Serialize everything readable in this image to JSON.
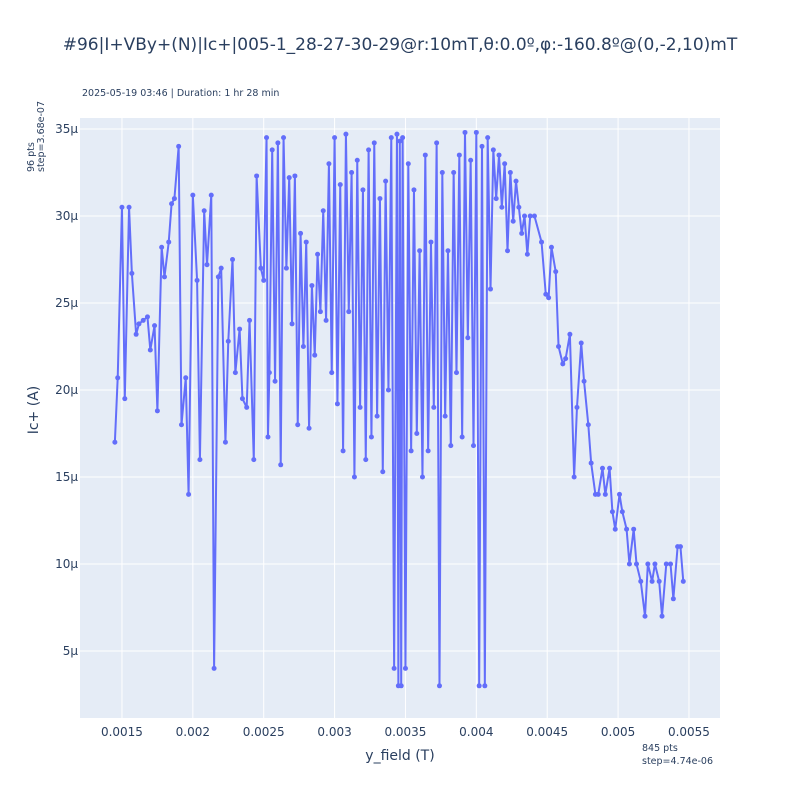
{
  "chart_data": {
    "type": "line",
    "title": "#96|I+VBy+(N)|Ic+|005-1_28-27-30-29@r:10mT,θ:0.0º,φ:-160.8º@(0,-2,10)mT",
    "annotation_top": "2025-05-19 03:46 | Duration: 1 hr 28 min",
    "annotation_left": [
      "96 pts",
      "step=3.68e-07"
    ],
    "annotation_bottom": [
      "845 pts",
      "step=4.74e-06"
    ],
    "x_label": "y_field (T)",
    "y_label": "Ic+ (A)",
    "color": "#636efa",
    "grid": true,
    "xlim": [
      0.001204,
      0.005719
    ],
    "xticks": [
      0.0015,
      0.002,
      0.0025,
      0.003,
      0.0035,
      0.004,
      0.0045,
      0.005,
      0.0055
    ],
    "ylim": [
      1.15e-06,
      3.563e-05
    ],
    "yticks": [
      {
        "value": 5e-06,
        "label": "5μ"
      },
      {
        "value": 1e-05,
        "label": "10μ"
      },
      {
        "value": 1.5e-05,
        "label": "15μ"
      },
      {
        "value": 2e-05,
        "label": "20μ"
      },
      {
        "value": 2.5e-05,
        "label": "25μ"
      },
      {
        "value": 3e-05,
        "label": "30μ"
      },
      {
        "value": 3.5e-05,
        "label": "35μ"
      }
    ],
    "x": [
      0.00145,
      0.00147,
      0.0015,
      0.00152,
      0.00155,
      0.00157,
      0.0016,
      0.00162,
      0.00165,
      0.00168,
      0.0017,
      0.00173,
      0.00175,
      0.00178,
      0.0018,
      0.00183,
      0.00185,
      0.00187,
      0.0019,
      0.00192,
      0.00195,
      0.00197,
      0.002,
      0.00203,
      0.00205,
      0.00208,
      0.0021,
      0.00213,
      0.00215,
      0.00218,
      0.0022,
      0.00223,
      0.00225,
      0.00228,
      0.0023,
      0.00233,
      0.00235,
      0.00238,
      0.0024,
      0.00243,
      0.00245,
      0.00248,
      0.0025,
      0.00252,
      0.00253,
      0.00254,
      0.00256,
      0.00258,
      0.0026,
      0.00262,
      0.00264,
      0.00266,
      0.00268,
      0.0027,
      0.00272,
      0.00274,
      0.00276,
      0.00278,
      0.0028,
      0.00282,
      0.00284,
      0.00286,
      0.00288,
      0.0029,
      0.00292,
      0.00294,
      0.00296,
      0.00298,
      0.003,
      0.00302,
      0.00304,
      0.00306,
      0.00308,
      0.0031,
      0.00312,
      0.00314,
      0.00316,
      0.00318,
      0.0032,
      0.00322,
      0.00324,
      0.00326,
      0.00328,
      0.0033,
      0.00332,
      0.00334,
      0.00336,
      0.00338,
      0.0034,
      0.00342,
      0.00344,
      0.00345,
      0.00346,
      0.00347,
      0.00348,
      0.0035,
      0.00352,
      0.00354,
      0.00356,
      0.00358,
      0.0036,
      0.00362,
      0.00364,
      0.00366,
      0.00368,
      0.0037,
      0.00372,
      0.00374,
      0.00376,
      0.00378,
      0.0038,
      0.00382,
      0.00384,
      0.00386,
      0.00388,
      0.0039,
      0.00392,
      0.00394,
      0.00396,
      0.00398,
      0.004,
      0.00402,
      0.00404,
      0.00406,
      0.00408,
      0.0041,
      0.00412,
      0.00414,
      0.00416,
      0.00418,
      0.0042,
      0.00422,
      0.00424,
      0.00426,
      0.00428,
      0.0043,
      0.00432,
      0.00434,
      0.00436,
      0.00438,
      0.00441,
      0.00446,
      0.00449,
      0.00451,
      0.00453,
      0.00456,
      0.00458,
      0.00461,
      0.00463,
      0.00466,
      0.00469,
      0.00471,
      0.00474,
      0.00476,
      0.00479,
      0.00481,
      0.00484,
      0.00486,
      0.00489,
      0.00491,
      0.00494,
      0.00496,
      0.00498,
      0.00501,
      0.00503,
      0.00506,
      0.00508,
      0.00511,
      0.00513,
      0.00516,
      0.00519,
      0.00521,
      0.00524,
      0.00526,
      0.00529,
      0.00531,
      0.00534,
      0.00537,
      0.00539,
      0.00542,
      0.00544,
      0.00546
    ],
    "values": [
      1.7e-05,
      2.07e-05,
      3.05e-05,
      1.95e-05,
      3.05e-05,
      2.67e-05,
      2.32e-05,
      2.38e-05,
      2.4e-05,
      2.42e-05,
      2.23e-05,
      2.37e-05,
      1.88e-05,
      2.82e-05,
      2.65e-05,
      2.85e-05,
      3.07e-05,
      3.1e-05,
      3.4e-05,
      1.8e-05,
      2.07e-05,
      1.4e-05,
      3.12e-05,
      2.63e-05,
      1.6e-05,
      3.03e-05,
      2.72e-05,
      3.12e-05,
      4e-06,
      2.65e-05,
      2.7e-05,
      1.7e-05,
      2.28e-05,
      2.75e-05,
      2.1e-05,
      2.35e-05,
      1.95e-05,
      1.9e-05,
      2.4e-05,
      1.6e-05,
      3.23e-05,
      2.7e-05,
      2.63e-05,
      3.45e-05,
      1.73e-05,
      2.1e-05,
      3.38e-05,
      2.05e-05,
      3.42e-05,
      1.57e-05,
      3.45e-05,
      2.7e-05,
      3.22e-05,
      2.38e-05,
      3.23e-05,
      1.8e-05,
      2.9e-05,
      2.25e-05,
      2.85e-05,
      1.78e-05,
      2.6e-05,
      2.2e-05,
      2.78e-05,
      2.45e-05,
      3.03e-05,
      2.4e-05,
      3.3e-05,
      2.1e-05,
      3.45e-05,
      1.92e-05,
      3.18e-05,
      1.65e-05,
      3.47e-05,
      2.45e-05,
      3.25e-05,
      1.5e-05,
      3.32e-05,
      1.9e-05,
      3.15e-05,
      1.6e-05,
      3.38e-05,
      1.73e-05,
      3.42e-05,
      1.85e-05,
      3.1e-05,
      1.53e-05,
      3.2e-05,
      2e-05,
      3.45e-05,
      4e-06,
      3.47e-05,
      3e-06,
      3.43e-05,
      3e-06,
      3.45e-05,
      4e-06,
      3.3e-05,
      1.65e-05,
      3.15e-05,
      1.75e-05,
      2.8e-05,
      1.5e-05,
      3.35e-05,
      1.65e-05,
      2.85e-05,
      1.9e-05,
      3.42e-05,
      3e-06,
      3.25e-05,
      1.85e-05,
      2.8e-05,
      1.68e-05,
      3.25e-05,
      2.1e-05,
      3.35e-05,
      1.73e-05,
      3.48e-05,
      2.3e-05,
      3.32e-05,
      1.68e-05,
      3.48e-05,
      3e-06,
      3.4e-05,
      3e-06,
      3.45e-05,
      2.58e-05,
      3.38e-05,
      3.1e-05,
      3.35e-05,
      3.05e-05,
      3.3e-05,
      2.8e-05,
      3.25e-05,
      2.97e-05,
      3.2e-05,
      3.05e-05,
      2.9e-05,
      3e-05,
      2.78e-05,
      3e-05,
      3e-05,
      2.85e-05,
      2.55e-05,
      2.53e-05,
      2.82e-05,
      2.68e-05,
      2.25e-05,
      2.15e-05,
      2.18e-05,
      2.32e-05,
      1.5e-05,
      1.9e-05,
      2.27e-05,
      2.05e-05,
      1.8e-05,
      1.58e-05,
      1.4e-05,
      1.4e-05,
      1.55e-05,
      1.4e-05,
      1.55e-05,
      1.3e-05,
      1.2e-05,
      1.4e-05,
      1.3e-05,
      1.2e-05,
      1e-05,
      1.2e-05,
      1e-05,
      9e-06,
      7e-06,
      1e-05,
      9e-06,
      1e-05,
      9e-06,
      7e-06,
      1e-05,
      1e-05,
      8e-06,
      1.1e-05,
      1.1e-05,
      9e-06
    ]
  }
}
